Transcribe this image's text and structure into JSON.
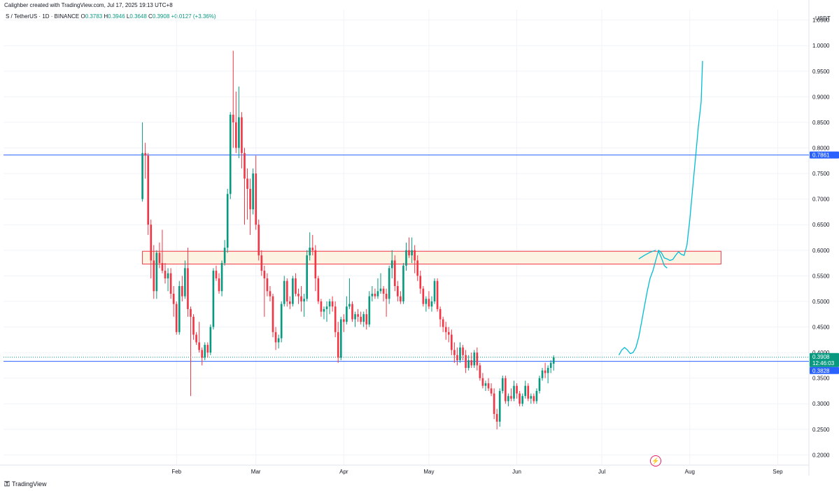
{
  "header": {
    "attribution": "Calighber created with TradingView.com, Jul 17, 2025 19:13 UTC+8",
    "symbol": "S / TetherUS · 1D · BINANCE",
    "o_label": "O",
    "o_value": "0.3783",
    "h_label": "H",
    "h_value": "0.3946",
    "l_label": "L",
    "l_value": "0.3648",
    "c_label": "C",
    "c_value": "0.3908",
    "change": "+0.0127 (+3.36%)"
  },
  "currency": "USDT",
  "footer": {
    "logo_text": "TradingView"
  },
  "colors": {
    "up": "#089981",
    "down": "#f23645",
    "hline": "#2962ff",
    "zone_border": "#f23645",
    "zone_fill": "#fdf3e3",
    "projection": "#00bcd4",
    "grid": "#f0f3fa"
  },
  "chart_data": {
    "type": "candlestick",
    "symbol": "S / TetherUS",
    "interval": "1D",
    "exchange": "BINANCE",
    "y_ticks": [
      "1.0500",
      "1.0000",
      "0.9500",
      "0.9000",
      "0.8500",
      "0.8000",
      "0.7500",
      "0.7000",
      "0.6500",
      "0.6000",
      "0.5500",
      "0.5000",
      "0.4500",
      "0.4000",
      "0.3500",
      "0.3000",
      "0.2500",
      "0.2000"
    ],
    "ylim": [
      0.18,
      1.07
    ],
    "x_ticks": [
      "Feb",
      "Mar",
      "Apr",
      "May",
      "Jun",
      "Jul",
      "Aug",
      "Sep"
    ],
    "x_tick_days": [
      0,
      28,
      59,
      89,
      120,
      150,
      181,
      212
    ],
    "xlim_days": [
      -61,
      223
    ],
    "x_day_origin": "Feb 1",
    "price_labels": {
      "resistance": "0.7861",
      "current": "0.3908",
      "countdown": "12:46:03",
      "support": "0.3828"
    },
    "horizontal_lines": [
      0.7861,
      0.3828
    ],
    "current_price": 0.3908,
    "zone": {
      "top": 0.598,
      "bottom": 0.573,
      "start_day": -12,
      "end_day": 192
    },
    "candles": [
      {
        "o": 0.7,
        "h": 0.85,
        "l": 0.695,
        "c": 0.79
      },
      {
        "o": 0.79,
        "h": 0.81,
        "l": 0.74,
        "c": 0.785
      },
      {
        "o": 0.785,
        "h": 0.79,
        "l": 0.63,
        "c": 0.65
      },
      {
        "o": 0.65,
        "h": 0.66,
        "l": 0.545,
        "c": 0.58
      },
      {
        "o": 0.58,
        "h": 0.61,
        "l": 0.505,
        "c": 0.52
      },
      {
        "o": 0.52,
        "h": 0.6,
        "l": 0.505,
        "c": 0.595
      },
      {
        "o": 0.595,
        "h": 0.615,
        "l": 0.565,
        "c": 0.575
      },
      {
        "o": 0.575,
        "h": 0.64,
        "l": 0.555,
        "c": 0.56
      },
      {
        "o": 0.56,
        "h": 0.575,
        "l": 0.535,
        "c": 0.545
      },
      {
        "o": 0.545,
        "h": 0.565,
        "l": 0.52,
        "c": 0.555
      },
      {
        "o": 0.555,
        "h": 0.565,
        "l": 0.505,
        "c": 0.515
      },
      {
        "o": 0.515,
        "h": 0.53,
        "l": 0.47,
        "c": 0.495
      },
      {
        "o": 0.495,
        "h": 0.5,
        "l": 0.435,
        "c": 0.44
      },
      {
        "o": 0.44,
        "h": 0.54,
        "l": 0.435,
        "c": 0.53
      },
      {
        "o": 0.53,
        "h": 0.55,
        "l": 0.5,
        "c": 0.51
      },
      {
        "o": 0.51,
        "h": 0.58,
        "l": 0.505,
        "c": 0.565
      },
      {
        "o": 0.565,
        "h": 0.605,
        "l": 0.47,
        "c": 0.485
      },
      {
        "o": 0.485,
        "h": 0.49,
        "l": 0.315,
        "c": 0.47
      },
      {
        "o": 0.47,
        "h": 0.475,
        "l": 0.425,
        "c": 0.435
      },
      {
        "o": 0.435,
        "h": 0.44,
        "l": 0.415,
        "c": 0.42
      },
      {
        "o": 0.42,
        "h": 0.46,
        "l": 0.4,
        "c": 0.405
      },
      {
        "o": 0.405,
        "h": 0.41,
        "l": 0.375,
        "c": 0.39
      },
      {
        "o": 0.39,
        "h": 0.42,
        "l": 0.385,
        "c": 0.415
      },
      {
        "o": 0.415,
        "h": 0.42,
        "l": 0.39,
        "c": 0.4
      },
      {
        "o": 0.4,
        "h": 0.455,
        "l": 0.395,
        "c": 0.45
      },
      {
        "o": 0.45,
        "h": 0.565,
        "l": 0.445,
        "c": 0.56
      },
      {
        "o": 0.56,
        "h": 0.57,
        "l": 0.54,
        "c": 0.545
      },
      {
        "o": 0.545,
        "h": 0.555,
        "l": 0.515,
        "c": 0.52
      },
      {
        "o": 0.52,
        "h": 0.58,
        "l": 0.51,
        "c": 0.575
      },
      {
        "o": 0.575,
        "h": 0.62,
        "l": 0.57,
        "c": 0.605
      },
      {
        "o": 0.605,
        "h": 0.72,
        "l": 0.595,
        "c": 0.71
      },
      {
        "o": 0.71,
        "h": 0.87,
        "l": 0.7,
        "c": 0.865
      },
      {
        "o": 0.865,
        "h": 0.99,
        "l": 0.8,
        "c": 0.85
      },
      {
        "o": 0.85,
        "h": 0.91,
        "l": 0.79,
        "c": 0.8
      },
      {
        "o": 0.8,
        "h": 0.92,
        "l": 0.78,
        "c": 0.86
      },
      {
        "o": 0.86,
        "h": 0.87,
        "l": 0.76,
        "c": 0.79
      },
      {
        "o": 0.79,
        "h": 0.8,
        "l": 0.65,
        "c": 0.74
      },
      {
        "o": 0.74,
        "h": 0.76,
        "l": 0.66,
        "c": 0.72
      },
      {
        "o": 0.72,
        "h": 0.74,
        "l": 0.63,
        "c": 0.68
      },
      {
        "o": 0.68,
        "h": 0.76,
        "l": 0.67,
        "c": 0.75
      },
      {
        "o": 0.75,
        "h": 0.785,
        "l": 0.64,
        "c": 0.65
      },
      {
        "o": 0.65,
        "h": 0.66,
        "l": 0.58,
        "c": 0.59
      },
      {
        "o": 0.59,
        "h": 0.6,
        "l": 0.55,
        "c": 0.56
      },
      {
        "o": 0.56,
        "h": 0.57,
        "l": 0.47,
        "c": 0.545
      },
      {
        "o": 0.545,
        "h": 0.555,
        "l": 0.51,
        "c": 0.52
      },
      {
        "o": 0.52,
        "h": 0.53,
        "l": 0.5,
        "c": 0.51
      },
      {
        "o": 0.51,
        "h": 0.515,
        "l": 0.43,
        "c": 0.44
      },
      {
        "o": 0.44,
        "h": 0.45,
        "l": 0.405,
        "c": 0.42
      },
      {
        "o": 0.42,
        "h": 0.435,
        "l": 0.408,
        "c": 0.428
      },
      {
        "o": 0.428,
        "h": 0.5,
        "l": 0.42,
        "c": 0.495
      },
      {
        "o": 0.495,
        "h": 0.55,
        "l": 0.49,
        "c": 0.54
      },
      {
        "o": 0.54,
        "h": 0.545,
        "l": 0.49,
        "c": 0.5
      },
      {
        "o": 0.5,
        "h": 0.51,
        "l": 0.485,
        "c": 0.495
      },
      {
        "o": 0.495,
        "h": 0.55,
        "l": 0.49,
        "c": 0.545
      },
      {
        "o": 0.545,
        "h": 0.555,
        "l": 0.51,
        "c": 0.515
      },
      {
        "o": 0.515,
        "h": 0.525,
        "l": 0.495,
        "c": 0.51
      },
      {
        "o": 0.51,
        "h": 0.53,
        "l": 0.48,
        "c": 0.5
      },
      {
        "o": 0.5,
        "h": 0.515,
        "l": 0.47,
        "c": 0.505
      },
      {
        "o": 0.505,
        "h": 0.6,
        "l": 0.5,
        "c": 0.59
      },
      {
        "o": 0.59,
        "h": 0.635,
        "l": 0.58,
        "c": 0.605
      },
      {
        "o": 0.605,
        "h": 0.63,
        "l": 0.59,
        "c": 0.6
      },
      {
        "o": 0.6,
        "h": 0.61,
        "l": 0.52,
        "c": 0.545
      },
      {
        "o": 0.545,
        "h": 0.55,
        "l": 0.495,
        "c": 0.5
      },
      {
        "o": 0.5,
        "h": 0.505,
        "l": 0.47,
        "c": 0.48
      },
      {
        "o": 0.48,
        "h": 0.49,
        "l": 0.465,
        "c": 0.485
      },
      {
        "o": 0.485,
        "h": 0.5,
        "l": 0.46,
        "c": 0.49
      },
      {
        "o": 0.49,
        "h": 0.505,
        "l": 0.475,
        "c": 0.5
      },
      {
        "o": 0.5,
        "h": 0.51,
        "l": 0.48,
        "c": 0.49
      },
      {
        "o": 0.49,
        "h": 0.5,
        "l": 0.43,
        "c": 0.44
      },
      {
        "o": 0.44,
        "h": 0.46,
        "l": 0.38,
        "c": 0.39
      },
      {
        "o": 0.39,
        "h": 0.47,
        "l": 0.385,
        "c": 0.465
      },
      {
        "o": 0.465,
        "h": 0.475,
        "l": 0.44,
        "c": 0.46
      },
      {
        "o": 0.46,
        "h": 0.51,
        "l": 0.455,
        "c": 0.49
      },
      {
        "o": 0.49,
        "h": 0.545,
        "l": 0.485,
        "c": 0.495
      },
      {
        "o": 0.495,
        "h": 0.5,
        "l": 0.46,
        "c": 0.465
      },
      {
        "o": 0.465,
        "h": 0.48,
        "l": 0.45,
        "c": 0.475
      },
      {
        "o": 0.475,
        "h": 0.485,
        "l": 0.46,
        "c": 0.47
      },
      {
        "o": 0.47,
        "h": 0.48,
        "l": 0.455,
        "c": 0.46
      },
      {
        "o": 0.46,
        "h": 0.48,
        "l": 0.45,
        "c": 0.475
      },
      {
        "o": 0.475,
        "h": 0.485,
        "l": 0.445,
        "c": 0.455
      },
      {
        "o": 0.455,
        "h": 0.52,
        "l": 0.45,
        "c": 0.51
      },
      {
        "o": 0.51,
        "h": 0.53,
        "l": 0.5,
        "c": 0.515
      },
      {
        "o": 0.515,
        "h": 0.525,
        "l": 0.505,
        "c": 0.51
      },
      {
        "o": 0.51,
        "h": 0.545,
        "l": 0.505,
        "c": 0.52
      },
      {
        "o": 0.52,
        "h": 0.555,
        "l": 0.515,
        "c": 0.525
      },
      {
        "o": 0.525,
        "h": 0.53,
        "l": 0.5,
        "c": 0.515
      },
      {
        "o": 0.515,
        "h": 0.525,
        "l": 0.47,
        "c": 0.505
      },
      {
        "o": 0.505,
        "h": 0.57,
        "l": 0.495,
        "c": 0.565
      },
      {
        "o": 0.565,
        "h": 0.6,
        "l": 0.545,
        "c": 0.58
      },
      {
        "o": 0.58,
        "h": 0.59,
        "l": 0.52,
        "c": 0.53
      },
      {
        "o": 0.53,
        "h": 0.54,
        "l": 0.5,
        "c": 0.51
      },
      {
        "o": 0.51,
        "h": 0.52,
        "l": 0.495,
        "c": 0.5
      },
      {
        "o": 0.5,
        "h": 0.575,
        "l": 0.495,
        "c": 0.57
      },
      {
        "o": 0.57,
        "h": 0.615,
        "l": 0.56,
        "c": 0.6
      },
      {
        "o": 0.6,
        "h": 0.625,
        "l": 0.585,
        "c": 0.59
      },
      {
        "o": 0.59,
        "h": 0.625,
        "l": 0.575,
        "c": 0.6
      },
      {
        "o": 0.6,
        "h": 0.61,
        "l": 0.555,
        "c": 0.58
      },
      {
        "o": 0.58,
        "h": 0.59,
        "l": 0.54,
        "c": 0.55
      },
      {
        "o": 0.55,
        "h": 0.56,
        "l": 0.515,
        "c": 0.525
      },
      {
        "o": 0.525,
        "h": 0.53,
        "l": 0.49,
        "c": 0.495
      },
      {
        "o": 0.495,
        "h": 0.51,
        "l": 0.48,
        "c": 0.505
      },
      {
        "o": 0.505,
        "h": 0.52,
        "l": 0.485,
        "c": 0.49
      },
      {
        "o": 0.49,
        "h": 0.51,
        "l": 0.48,
        "c": 0.5
      },
      {
        "o": 0.5,
        "h": 0.545,
        "l": 0.495,
        "c": 0.54
      },
      {
        "o": 0.54,
        "h": 0.545,
        "l": 0.48,
        "c": 0.485
      },
      {
        "o": 0.485,
        "h": 0.49,
        "l": 0.45,
        "c": 0.465
      },
      {
        "o": 0.465,
        "h": 0.47,
        "l": 0.44,
        "c": 0.45
      },
      {
        "o": 0.45,
        "h": 0.46,
        "l": 0.425,
        "c": 0.44
      },
      {
        "o": 0.44,
        "h": 0.45,
        "l": 0.42,
        "c": 0.435
      },
      {
        "o": 0.435,
        "h": 0.445,
        "l": 0.395,
        "c": 0.405
      },
      {
        "o": 0.405,
        "h": 0.42,
        "l": 0.38,
        "c": 0.395
      },
      {
        "o": 0.395,
        "h": 0.41,
        "l": 0.375,
        "c": 0.385
      },
      {
        "o": 0.385,
        "h": 0.42,
        "l": 0.38,
        "c": 0.41
      },
      {
        "o": 0.41,
        "h": 0.415,
        "l": 0.385,
        "c": 0.395
      },
      {
        "o": 0.395,
        "h": 0.405,
        "l": 0.36,
        "c": 0.37
      },
      {
        "o": 0.37,
        "h": 0.395,
        "l": 0.365,
        "c": 0.385
      },
      {
        "o": 0.385,
        "h": 0.4,
        "l": 0.37,
        "c": 0.375
      },
      {
        "o": 0.375,
        "h": 0.405,
        "l": 0.37,
        "c": 0.4
      },
      {
        "o": 0.4,
        "h": 0.41,
        "l": 0.365,
        "c": 0.375
      },
      {
        "o": 0.375,
        "h": 0.38,
        "l": 0.345,
        "c": 0.35
      },
      {
        "o": 0.35,
        "h": 0.36,
        "l": 0.33,
        "c": 0.335
      },
      {
        "o": 0.335,
        "h": 0.345,
        "l": 0.325,
        "c": 0.34
      },
      {
        "o": 0.34,
        "h": 0.35,
        "l": 0.325,
        "c": 0.33
      },
      {
        "o": 0.33,
        "h": 0.34,
        "l": 0.315,
        "c": 0.32
      },
      {
        "o": 0.32,
        "h": 0.33,
        "l": 0.27,
        "c": 0.28
      },
      {
        "o": 0.28,
        "h": 0.29,
        "l": 0.25,
        "c": 0.265
      },
      {
        "o": 0.265,
        "h": 0.33,
        "l": 0.255,
        "c": 0.325
      },
      {
        "o": 0.325,
        "h": 0.355,
        "l": 0.32,
        "c": 0.35
      },
      {
        "o": 0.35,
        "h": 0.355,
        "l": 0.3,
        "c": 0.305
      },
      {
        "o": 0.305,
        "h": 0.32,
        "l": 0.295,
        "c": 0.315
      },
      {
        "o": 0.315,
        "h": 0.33,
        "l": 0.305,
        "c": 0.31
      },
      {
        "o": 0.31,
        "h": 0.345,
        "l": 0.305,
        "c": 0.335
      },
      {
        "o": 0.335,
        "h": 0.34,
        "l": 0.31,
        "c": 0.32
      },
      {
        "o": 0.32,
        "h": 0.325,
        "l": 0.295,
        "c": 0.3
      },
      {
        "o": 0.3,
        "h": 0.32,
        "l": 0.295,
        "c": 0.315
      },
      {
        "o": 0.315,
        "h": 0.345,
        "l": 0.31,
        "c": 0.335
      },
      {
        "o": 0.335,
        "h": 0.34,
        "l": 0.305,
        "c": 0.31
      },
      {
        "o": 0.31,
        "h": 0.32,
        "l": 0.3,
        "c": 0.315
      },
      {
        "o": 0.315,
        "h": 0.32,
        "l": 0.3,
        "c": 0.305
      },
      {
        "o": 0.305,
        "h": 0.33,
        "l": 0.3,
        "c": 0.325
      },
      {
        "o": 0.325,
        "h": 0.355,
        "l": 0.32,
        "c": 0.35
      },
      {
        "o": 0.35,
        "h": 0.37,
        "l": 0.345,
        "c": 0.365
      },
      {
        "o": 0.365,
        "h": 0.38,
        "l": 0.35,
        "c": 0.36
      },
      {
        "o": 0.36,
        "h": 0.375,
        "l": 0.34,
        "c": 0.37
      },
      {
        "o": 0.37,
        "h": 0.385,
        "l": 0.36,
        "c": 0.38
      },
      {
        "o": 0.3783,
        "h": 0.3946,
        "l": 0.3648,
        "c": 0.3908
      }
    ],
    "candle_start_day": -12,
    "candle_day_step": 1,
    "projection_path": [
      [
        156,
        0.395
      ],
      [
        157,
        0.405
      ],
      [
        158,
        0.41
      ],
      [
        159,
        0.405
      ],
      [
        160,
        0.398
      ],
      [
        161,
        0.4
      ],
      [
        162,
        0.41
      ],
      [
        163,
        0.43
      ],
      [
        164,
        0.46
      ],
      [
        165,
        0.49
      ],
      [
        166,
        0.52
      ],
      [
        167,
        0.545
      ],
      [
        168,
        0.56
      ],
      [
        169,
        0.58
      ],
      [
        170,
        0.6
      ],
      [
        171,
        0.595
      ],
      [
        172,
        0.585
      ],
      [
        173,
        0.583
      ],
      [
        174,
        0.58
      ],
      [
        175,
        0.582
      ],
      [
        176,
        0.59
      ],
      [
        177,
        0.597
      ],
      [
        178,
        0.592
      ],
      [
        179,
        0.59
      ],
      [
        180,
        0.61
      ],
      [
        181,
        0.66
      ],
      [
        182,
        0.72
      ],
      [
        183,
        0.78
      ],
      [
        184,
        0.84
      ],
      [
        185,
        0.89
      ],
      [
        185.5,
        0.97
      ]
    ],
    "projection_wave_a": [
      [
        163,
        0.583
      ],
      [
        165,
        0.59
      ],
      [
        167,
        0.596
      ],
      [
        169,
        0.6
      ]
    ],
    "projection_wave_b": [
      [
        170,
        0.598
      ],
      [
        171,
        0.585
      ],
      [
        172,
        0.57
      ],
      [
        173,
        0.565
      ]
    ]
  }
}
